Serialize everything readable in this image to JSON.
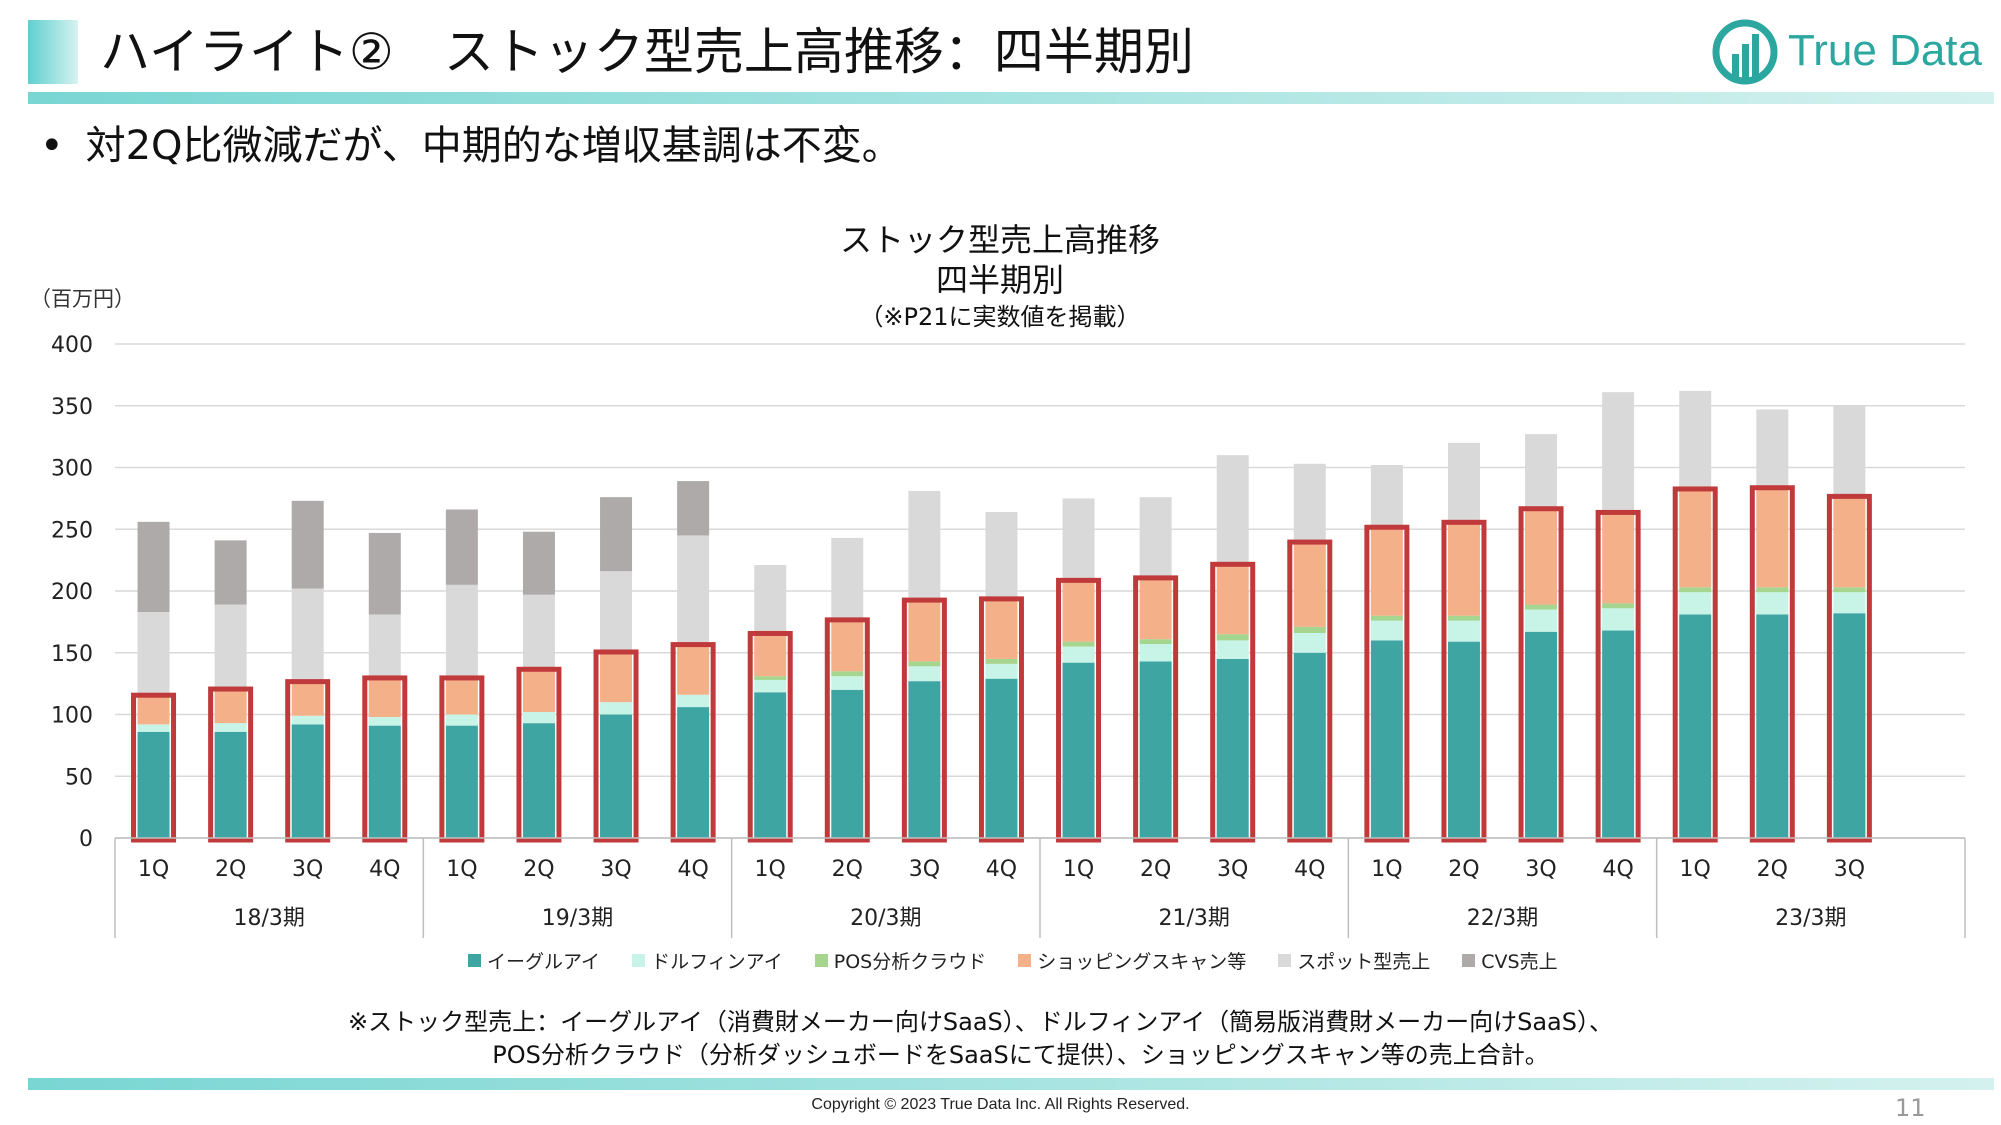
{
  "header": {
    "title": "ハイライト②　ストック型売上高推移：四半期別",
    "logo_text": "True Data"
  },
  "bullet": "対2Q比微減だが、中期的な増収基調は不変。",
  "chart_header": {
    "title_line1": "ストック型売上高推移",
    "title_line2": "四半期別",
    "subtitle": "（※P21に実数値を掲載）",
    "unit": "（百万円）"
  },
  "chart_data": {
    "type": "bar",
    "stacked": true,
    "title": "ストック型売上高推移 四半期別",
    "subtitle": "（※P21に実数値を掲載）",
    "ylabel": "（百万円）",
    "ylim": [
      0,
      400
    ],
    "yticks": [
      0,
      50,
      100,
      150,
      200,
      250,
      300,
      350,
      400
    ],
    "grid": true,
    "legend_position": "bottom",
    "categories": [
      "1Q",
      "2Q",
      "3Q",
      "4Q",
      "1Q",
      "2Q",
      "3Q",
      "4Q",
      "1Q",
      "2Q",
      "3Q",
      "4Q",
      "1Q",
      "2Q",
      "3Q",
      "4Q",
      "1Q",
      "2Q",
      "3Q",
      "4Q",
      "1Q",
      "2Q",
      "3Q"
    ],
    "groups": [
      {
        "label": "18/3期",
        "count": 4
      },
      {
        "label": "19/3期",
        "count": 4
      },
      {
        "label": "20/3期",
        "count": 4
      },
      {
        "label": "21/3期",
        "count": 4
      },
      {
        "label": "22/3期",
        "count": 4
      },
      {
        "label": "23/3期",
        "count": 3
      }
    ],
    "series": [
      {
        "name": "イーグルアイ",
        "color": "#3fa5a3",
        "values": [
          86,
          86,
          92,
          91,
          91,
          93,
          100,
          106,
          118,
          120,
          127,
          129,
          142,
          143,
          145,
          150,
          160,
          159,
          167,
          168,
          181,
          181,
          182
        ]
      },
      {
        "name": "ドルフィンアイ",
        "color": "#c8f4e8",
        "values": [
          6,
          7,
          7,
          7,
          9,
          9,
          10,
          10,
          10,
          11,
          12,
          12,
          13,
          14,
          15,
          16,
          16,
          17,
          18,
          18,
          18,
          18,
          17
        ]
      },
      {
        "name": "POS分析クラウド",
        "color": "#a6d58f",
        "values": [
          0,
          0,
          0,
          0,
          0,
          0,
          0,
          0,
          3,
          4,
          4,
          4,
          4,
          4,
          5,
          5,
          4,
          4,
          4,
          4,
          4,
          4,
          4
        ]
      },
      {
        "name": "ショッピングスキャン等",
        "color": "#f4b089",
        "values": [
          22,
          26,
          26,
          30,
          28,
          33,
          39,
          39,
          33,
          40,
          48,
          47,
          48,
          48,
          55,
          67,
          70,
          74,
          76,
          72,
          78,
          79,
          72
        ]
      },
      {
        "name": "スポット型売上",
        "color": "#d9d9d9",
        "values": [
          69,
          70,
          77,
          53,
          77,
          62,
          67,
          90,
          57,
          68,
          90,
          72,
          68,
          67,
          90,
          65,
          52,
          66,
          62,
          99,
          81,
          65,
          75
        ]
      },
      {
        "name": "CVS売上",
        "color": "#aeaaaa",
        "values": [
          73,
          52,
          71,
          66,
          61,
          51,
          60,
          44,
          0,
          0,
          0,
          0,
          0,
          0,
          0,
          0,
          0,
          0,
          0,
          0,
          0,
          0,
          0
        ]
      }
    ],
    "highlight": {
      "label": "ストック型売上",
      "color": "#c0393b"
    }
  },
  "note": {
    "line1": "※ストック型売上：イーグルアイ（消費財メーカー向けSaaS）、ドルフィンアイ（簡易版消費財メーカー向けSaaS）、",
    "line2": "POS分析クラウド（分析ダッシュボードをSaaSにて提供）、ショッピングスキャン等の売上合計。"
  },
  "footer": {
    "copyright": "Copyright © 2023 True Data Inc. All Rights Reserved.",
    "page_number": "11"
  }
}
